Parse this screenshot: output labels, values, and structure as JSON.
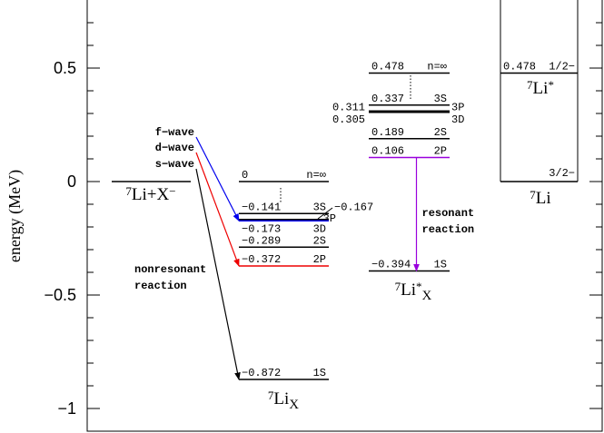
{
  "chart_data": {
    "type": "energy-levels",
    "y_label": "energy (MeV)",
    "ylim": [
      -1.104,
      0.8
    ],
    "yticks": [
      {
        "value": -1,
        "label": "−1"
      },
      {
        "value": -0.5,
        "label": "−0.5"
      },
      0,
      0.5
    ],
    "yminor_ticks": [
      -0.9,
      -0.8,
      -0.7,
      -0.6,
      -0.4,
      -0.3,
      -0.2,
      -0.1,
      0.1,
      0.2,
      0.3,
      0.4,
      0.6,
      0.7
    ],
    "groups": [
      {
        "labels": [
          [
            {
              "text": "7",
              "style": "sup"
            },
            {
              "text": "Li+X",
              "style": "main"
            },
            {
              "text": "−",
              "style": "sup"
            }
          ]
        ],
        "levels": [
          {
            "energy": 0
          }
        ]
      },
      {
        "labels": [
          [
            {
              "text": "7",
              "style": "sup"
            },
            {
              "text": "Li",
              "style": "main"
            },
            {
              "text": "X",
              "style": "sub"
            }
          ]
        ],
        "levels": [
          {
            "energy": 0,
            "state": "n=∞"
          },
          {
            "energy": -0.141,
            "energy_label": "−0.141",
            "state": "3S"
          },
          {
            "energy": -0.167,
            "energy_label": "−0.167",
            "state": "3P"
          },
          {
            "energy": -0.173,
            "energy_label": "−0.173",
            "state": "3D",
            "color": "#0000ee",
            "arrow": {
              "label": "f−wave",
              "color": "#0000ee"
            }
          },
          {
            "energy": -0.289,
            "energy_label": "−0.289",
            "state": "2S"
          },
          {
            "energy": -0.372,
            "energy_label": "−0.372",
            "state": "2P",
            "color": "#ee0000",
            "arrow": {
              "label": "d−wave",
              "color": "#ee0000"
            }
          },
          {
            "energy": -0.872,
            "energy_label": "−0.872",
            "state": "1S",
            "arrow": {
              "label": "s−wave",
              "color": "#000000"
            }
          }
        ]
      },
      {
        "labels": [
          [
            {
              "text": "7",
              "style": "sup"
            },
            {
              "text": "Li",
              "style": "main"
            },
            {
              "text": "*",
              "style": "sup"
            },
            {
              "text": "X",
              "style": "sub"
            }
          ]
        ],
        "levels": [
          {
            "energy": 0.478,
            "state": "n=∞"
          },
          {
            "energy": 0.337,
            "state": "3S"
          },
          {
            "energy": 0.311,
            "state": "3P"
          },
          {
            "energy": 0.305,
            "state": "3D"
          },
          {
            "energy": 0.189,
            "state": "2S"
          },
          {
            "energy": 0.106,
            "state": "2P",
            "color": "#9900dd"
          },
          {
            "energy": -0.394,
            "energy_label": "−0.394",
            "state": "1S",
            "arrow": {
              "label_lines": [
                "resonant",
                "reaction"
              ],
              "color": "#9900dd"
            }
          }
        ]
      },
      {
        "labels": [
          [
            {
              "text": "7",
              "style": "sup"
            },
            {
              "text": "Li",
              "style": "main"
            },
            {
              "text": "*",
              "style": "sup"
            }
          ],
          [
            {
              "text": "7",
              "style": "sup"
            },
            {
              "text": "Li",
              "style": "main"
            }
          ]
        ],
        "levels": [
          {
            "energy": 0.478,
            "state": "1/2−"
          },
          {
            "energy": 0,
            "state": "3/2−"
          }
        ]
      }
    ],
    "annotations": [
      {
        "lines": [
          "nonresonant",
          "reaction"
        ],
        "color": "#ee0000"
      }
    ]
  }
}
